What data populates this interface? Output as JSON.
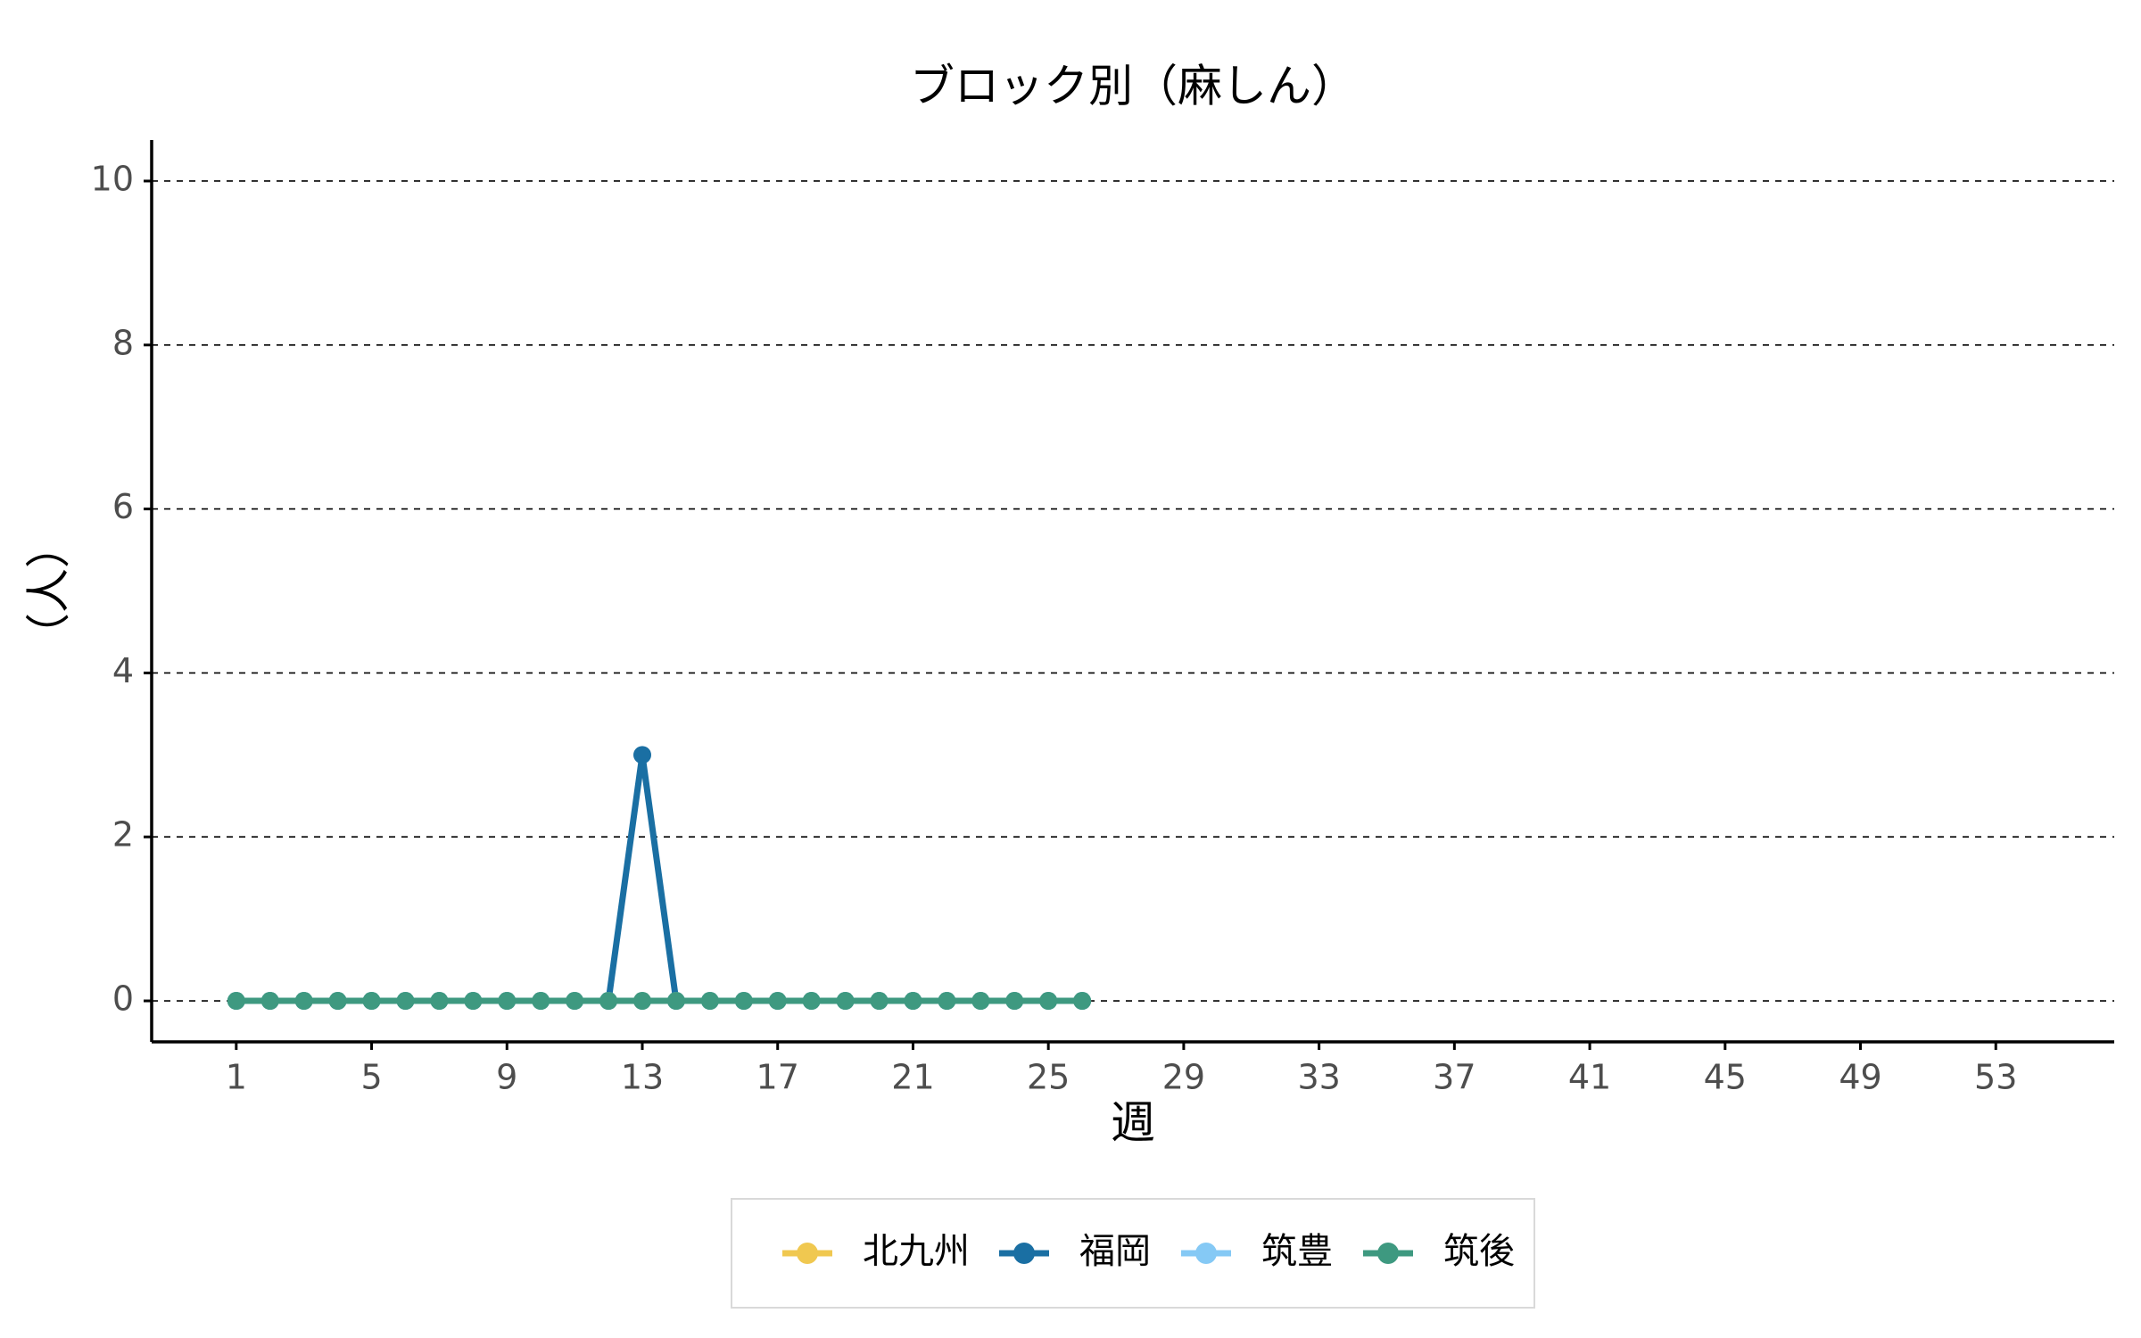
{
  "chart_data": {
    "type": "line",
    "title": "ブロック別（麻しん）",
    "xlabel": "週",
    "ylabel": "（人）",
    "xlim": [
      -1.5,
      56.5
    ],
    "ylim": [
      -0.5,
      10.5
    ],
    "xticks": [
      1,
      5,
      9,
      13,
      17,
      21,
      25,
      29,
      33,
      37,
      41,
      45,
      49,
      53
    ],
    "yticks": [
      0,
      2,
      4,
      6,
      8,
      10
    ],
    "grid": "horizontal dashed",
    "legend_position": "bottom",
    "x": [
      1,
      2,
      3,
      4,
      5,
      6,
      7,
      8,
      9,
      10,
      11,
      12,
      13,
      14,
      15,
      16,
      17,
      18,
      19,
      20,
      21,
      22,
      23,
      24,
      25,
      26
    ],
    "series": [
      {
        "name": "北九州",
        "color": "#F0C850",
        "values": [
          0,
          0,
          0,
          0,
          0,
          0,
          0,
          0,
          0,
          0,
          0,
          0,
          0,
          0,
          0,
          0,
          0,
          0,
          0,
          0,
          0,
          0,
          0,
          0,
          0,
          0
        ]
      },
      {
        "name": "福岡",
        "color": "#1A6FA3",
        "values": [
          0,
          0,
          0,
          0,
          0,
          0,
          0,
          0,
          0,
          0,
          0,
          0,
          3,
          0,
          0,
          0,
          0,
          0,
          0,
          0,
          0,
          0,
          0,
          0,
          0,
          0
        ]
      },
      {
        "name": "筑豊",
        "color": "#85C9F5",
        "values": [
          0,
          0,
          0,
          0,
          0,
          0,
          0,
          0,
          0,
          0,
          0,
          0,
          0,
          0,
          0,
          0,
          0,
          0,
          0,
          0,
          0,
          0,
          0,
          0,
          0,
          0
        ]
      },
      {
        "name": "筑後",
        "color": "#3E9980",
        "values": [
          0,
          0,
          0,
          0,
          0,
          0,
          0,
          0,
          0,
          0,
          0,
          0,
          0,
          0,
          0,
          0,
          0,
          0,
          0,
          0,
          0,
          0,
          0,
          0,
          0,
          0
        ]
      }
    ]
  }
}
